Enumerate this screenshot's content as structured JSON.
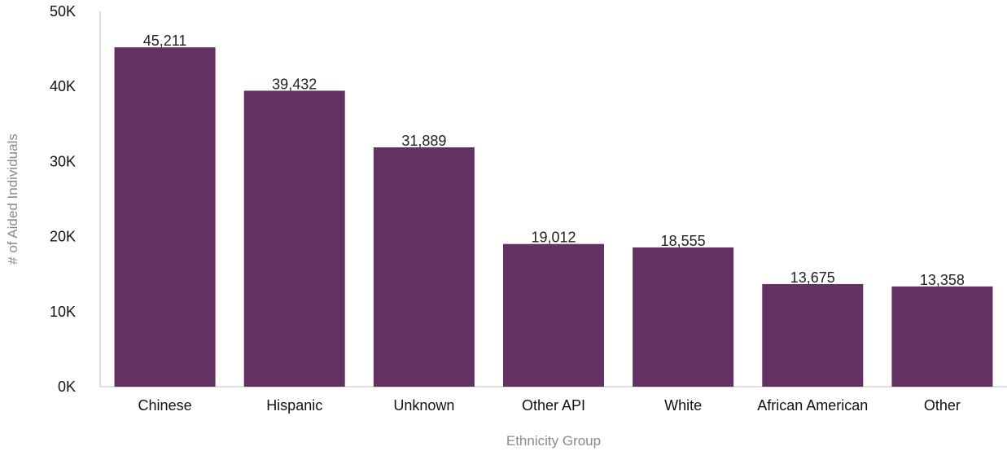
{
  "chart_data": {
    "type": "bar",
    "categories": [
      "Chinese",
      "Hispanic",
      "Unknown",
      "Other API",
      "White",
      "African American",
      "Other"
    ],
    "values": [
      45211,
      39432,
      31889,
      19012,
      18555,
      13675,
      13358
    ],
    "data_labels": [
      "45,211",
      "39,432",
      "31,889",
      "19,012",
      "18,555",
      "13,675",
      "13,358"
    ],
    "title": "",
    "xlabel": "Ethnicity Group",
    "ylabel": "# of Aided Individuals",
    "ylim": [
      0,
      50000
    ],
    "y_ticks": [
      0,
      10000,
      20000,
      30000,
      40000,
      50000
    ],
    "y_tick_labels": [
      "0K",
      "10K",
      "20K",
      "30K",
      "40K",
      "50K"
    ],
    "grid": false,
    "bar_color": "#633263"
  }
}
